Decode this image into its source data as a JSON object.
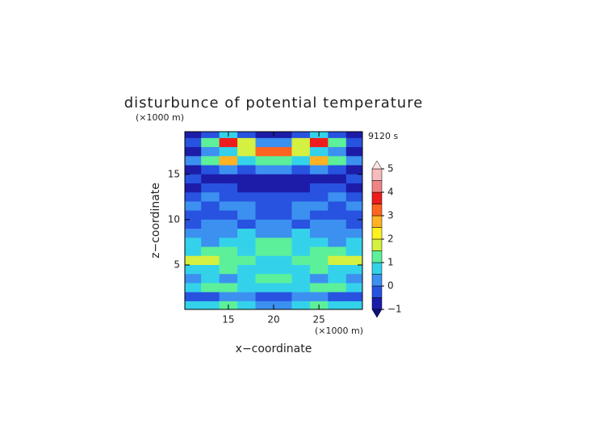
{
  "chart_data": {
    "type": "contour",
    "title": "disturbunce of potential temperature",
    "time_label": "9120 s",
    "xlabel": "x−coordinate",
    "ylabel": "z−coordinate",
    "x_unit": "(×1000 m)",
    "y_unit": "(×1000 m)",
    "xlim": [
      10.2,
      29.8
    ],
    "ylim": [
      0.1,
      19.7
    ],
    "xticks": [
      15,
      20,
      25
    ],
    "yticks": [
      5,
      10,
      15
    ],
    "x": [
      11,
      13,
      15,
      17,
      19,
      21,
      23,
      25,
      27,
      29
    ],
    "y": [
      19.5,
      18.5,
      17.5,
      16.5,
      15.5,
      14.5,
      13.5,
      12.5,
      11.5,
      10.5,
      9.5,
      8.5,
      7.5,
      6.5,
      5.5,
      4.5,
      3.5,
      2.5,
      1.5,
      0.5
    ],
    "z": [
      [
        -0.75,
        -0.25,
        0.75,
        -0.25,
        -0.75,
        -0.75,
        -0.25,
        0.75,
        -0.25,
        -0.75
      ],
      [
        -0.25,
        1.25,
        3.75,
        1.75,
        0.25,
        0.25,
        1.75,
        3.75,
        1.25,
        -0.25
      ],
      [
        -0.75,
        0.25,
        0.75,
        1.75,
        3.25,
        3.25,
        1.75,
        0.75,
        0.25,
        -0.75
      ],
      [
        0.25,
        1.25,
        2.75,
        0.75,
        1.25,
        1.25,
        0.75,
        2.75,
        1.25,
        0.25
      ],
      [
        -0.75,
        -0.25,
        0.25,
        -0.25,
        0.25,
        0.25,
        -0.25,
        0.25,
        -0.25,
        -0.75
      ],
      [
        -0.25,
        -0.75,
        -0.75,
        -0.75,
        -0.75,
        -0.75,
        -0.75,
        -0.75,
        -0.75,
        -0.25
      ],
      [
        -0.75,
        -0.25,
        -0.25,
        -0.75,
        -0.75,
        -0.75,
        -0.75,
        -0.25,
        -0.25,
        -0.75
      ],
      [
        -0.25,
        0.25,
        -0.25,
        -0.25,
        -0.25,
        -0.25,
        -0.25,
        -0.25,
        0.25,
        -0.25
      ],
      [
        0.25,
        -0.25,
        0.25,
        0.25,
        -0.25,
        -0.25,
        0.25,
        0.25,
        -0.25,
        0.25
      ],
      [
        -0.25,
        -0.25,
        -0.25,
        0.25,
        -0.25,
        -0.25,
        0.25,
        -0.25,
        -0.25,
        -0.25
      ],
      [
        -0.25,
        0.25,
        0.25,
        -0.25,
        0.25,
        0.25,
        -0.25,
        0.25,
        0.25,
        -0.25
      ],
      [
        0.25,
        0.25,
        0.25,
        0.75,
        0.25,
        0.25,
        0.75,
        0.25,
        0.25,
        0.25
      ],
      [
        0.75,
        0.25,
        0.75,
        0.75,
        1.25,
        1.25,
        0.75,
        0.75,
        0.25,
        0.75
      ],
      [
        0.75,
        1.25,
        1.25,
        0.75,
        1.25,
        1.25,
        0.75,
        1.25,
        1.25,
        0.75
      ],
      [
        1.75,
        1.75,
        1.25,
        1.25,
        0.75,
        0.75,
        1.25,
        1.25,
        1.75,
        1.75
      ],
      [
        0.75,
        0.75,
        1.25,
        0.75,
        0.75,
        0.75,
        0.75,
        1.25,
        0.75,
        0.75
      ],
      [
        0.25,
        0.75,
        0.25,
        0.75,
        1.25,
        1.25,
        0.75,
        0.25,
        0.75,
        0.25
      ],
      [
        0.75,
        1.25,
        1.25,
        0.75,
        0.75,
        0.75,
        0.75,
        1.25,
        1.25,
        0.75
      ],
      [
        -0.25,
        -0.25,
        0.25,
        0.25,
        -0.25,
        -0.25,
        0.25,
        0.25,
        -0.25,
        -0.25
      ],
      [
        0.75,
        0.75,
        1.25,
        0.75,
        0.25,
        0.25,
        0.75,
        1.25,
        0.75,
        0.75
      ]
    ],
    "levels": [
      -1,
      -0.5,
      0,
      0.5,
      1,
      1.5,
      2,
      2.5,
      3,
      3.5,
      4,
      4.5,
      5
    ],
    "colors": [
      "#1c1ca8",
      "#2852e0",
      "#3c90f0",
      "#34d2ea",
      "#5cf09a",
      "#d4f040",
      "#fff020",
      "#ffb224",
      "#ff6420",
      "#ee1c1c",
      "#f08484",
      "#f8bcbc"
    ],
    "colorbar_ticks": [
      {
        "value": -1,
        "label": "−1"
      },
      0,
      1,
      2,
      3,
      4,
      5
    ]
  }
}
